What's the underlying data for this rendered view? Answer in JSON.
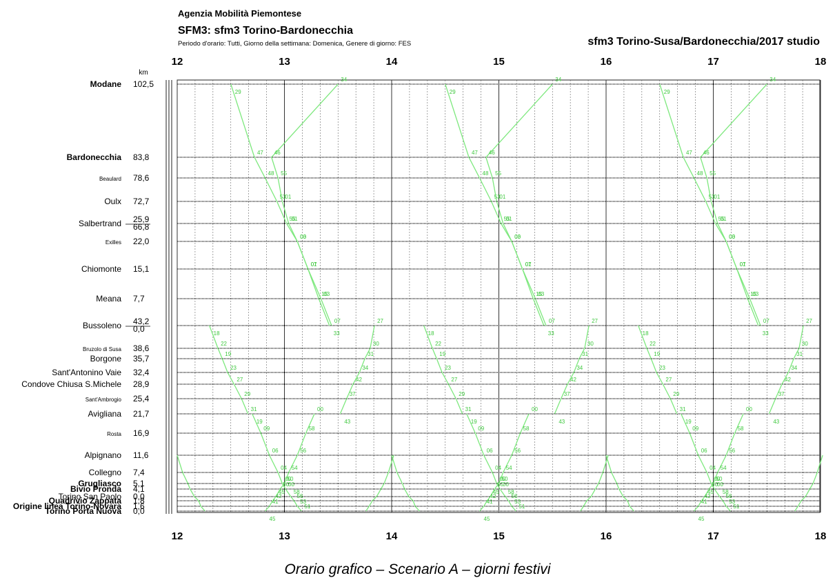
{
  "header": {
    "organization": "Agenzia Mobilità Piemontese",
    "subtitle": "SFM3: sfm3 Torino-Bardonecchia",
    "period": "Periodo d'orario: Tutti, Giorno della settimana: Domenica, Genere di giorno: FES",
    "right_title": "sfm3 Torino-Susa/Bardonecchia/2017 studio"
  },
  "caption": "Orario grafico – Scenario A – giorni festivi",
  "chart_data": {
    "type": "line",
    "title": "SFM3: sfm3 Torino-Bardonecchia",
    "xlabel": "",
    "ylabel": "km",
    "x_ticks": [
      12,
      13,
      14,
      15,
      16,
      17,
      18
    ],
    "xlim": [
      12,
      18
    ],
    "grid": true,
    "line_color": "#7de87d",
    "stations": [
      {
        "name": "Modane",
        "km": "102,5",
        "bold": true,
        "size": "l"
      },
      {
        "name": "Bardonecchia",
        "km": "83,8",
        "bold": true,
        "size": "l"
      },
      {
        "name": "Beaulard",
        "km": "78,6",
        "bold": false,
        "size": "s"
      },
      {
        "name": "Oulx",
        "km": "72,7",
        "bold": false,
        "size": "l"
      },
      {
        "name": "Salbertrand",
        "km": "25,9",
        "km2": "66,8",
        "bold": false,
        "size": "l"
      },
      {
        "name": "Exilles",
        "km": "22,0",
        "bold": false,
        "size": "s"
      },
      {
        "name": "Chiomonte",
        "km": "15,1",
        "bold": false,
        "size": "l"
      },
      {
        "name": "Meana",
        "km": "7,7",
        "bold": false,
        "size": "l"
      },
      {
        "name": "Bussoleno",
        "km": "43,2",
        "km2": "0,0",
        "bold": false,
        "size": "l"
      },
      {
        "name": "Bruzolo di Susa",
        "km": "38,6",
        "bold": false,
        "size": "s"
      },
      {
        "name": "Borgone",
        "km": "35,7",
        "bold": false,
        "size": "l"
      },
      {
        "name": "Sant'Antonino Vaie",
        "km": "32,4",
        "bold": false,
        "size": "l"
      },
      {
        "name": "Condove Chiusa S.Michele",
        "km": "28,9",
        "bold": false,
        "size": "l"
      },
      {
        "name": "Sant'Ambrogio",
        "km": "25,4",
        "bold": false,
        "size": "s"
      },
      {
        "name": "Avigliana",
        "km": "21,7",
        "bold": false,
        "size": "l"
      },
      {
        "name": "Rosta",
        "km": "16,9",
        "bold": false,
        "size": "s"
      },
      {
        "name": "Alpignano",
        "km": "11,6",
        "bold": false,
        "size": "l"
      },
      {
        "name": "Collegno",
        "km": "7,4",
        "bold": false,
        "size": "l"
      },
      {
        "name": "Grugliasco",
        "km": "5,1",
        "bold": true,
        "size": "l"
      },
      {
        "name": "Bivio Pronda",
        "km": "4,1",
        "bold": true,
        "size": "l"
      },
      {
        "name": "Torino San Paolo",
        "km": "0,0",
        "bold": false,
        "size": "l"
      },
      {
        "name": "Quadrivio Zappata",
        "km": "1,8",
        "bold": true,
        "size": "l"
      },
      {
        "name": "Origine linea Torino-Novara",
        "km": "1,6",
        "bold": true,
        "size": "l"
      },
      {
        "name": "Torino Porta Nuova",
        "km": "0,0",
        "bold": true,
        "size": "l"
      }
    ],
    "series": [
      {
        "hour": 12
      },
      {
        "hour": 14
      },
      {
        "hour": 16
      }
    ],
    "path_labels": {
      "bard_down": [
        "29",
        "47",
        "48",
        "53",
        "55",
        "00",
        "01",
        "03",
        "07",
        "37",
        "46",
        "40",
        "30",
        "30"
      ],
      "bard_up": [
        "33",
        "15",
        "07",
        "03",
        "01",
        "01",
        "55",
        "46",
        "34",
        "15",
        "26",
        "21",
        "27"
      ],
      "susa_down": [
        "18",
        "22",
        "19",
        "23",
        "27",
        "29",
        "31",
        "33",
        "35",
        "37",
        "40",
        "41",
        "43",
        "47"
      ],
      "susa_up": [
        "43",
        "37",
        "42",
        "34",
        "31",
        "30",
        "27",
        "29",
        "23",
        "21",
        "17",
        "19",
        "15",
        "09"
      ],
      "lower_down": [
        "19",
        "09",
        "06",
        "04",
        "00",
        "00",
        "58",
        "56",
        "53",
        "51"
      ],
      "lower_up": [
        "45",
        "41",
        "42",
        "45",
        "50",
        "50",
        "54",
        "56",
        "58",
        "00",
        "04"
      ]
    }
  }
}
